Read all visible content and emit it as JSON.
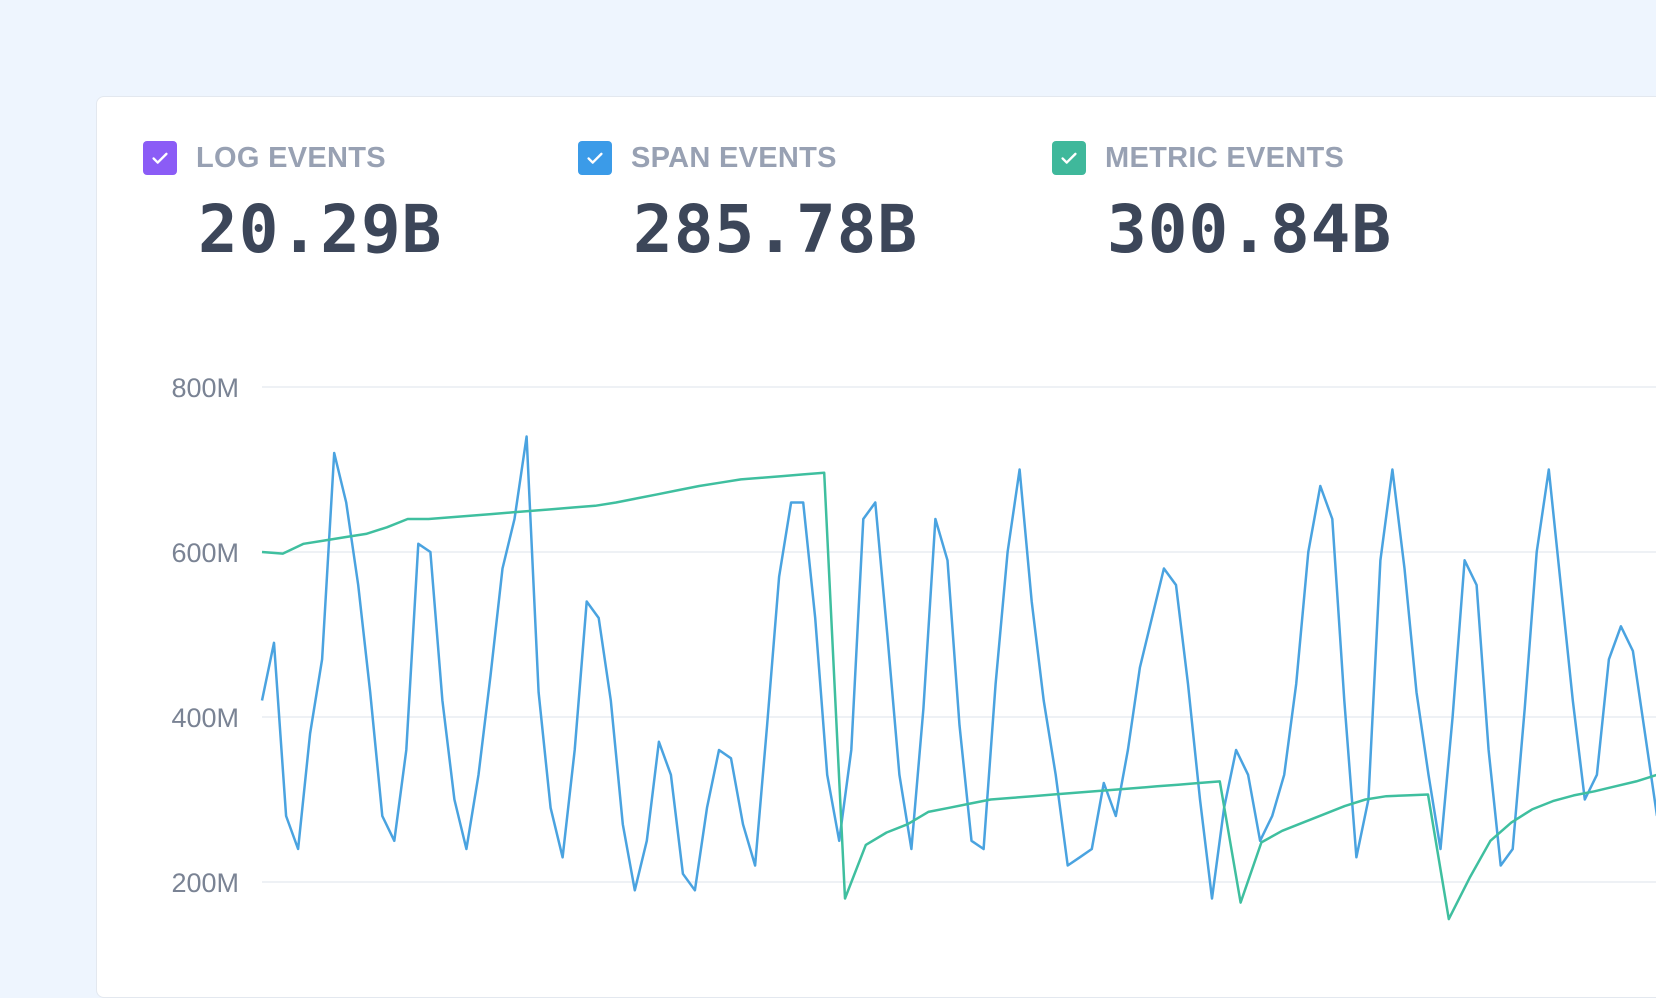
{
  "stats": [
    {
      "label": "LOG EVENTS",
      "value": "20.29B",
      "color": "#8b5cf6",
      "checked": true
    },
    {
      "label": "SPAN EVENTS",
      "value": "285.78B",
      "color": "#3b9be8",
      "checked": true
    },
    {
      "label": "METRIC EVENTS",
      "value": "300.84B",
      "color": "#3fb89b",
      "checked": true
    }
  ],
  "chart_data": {
    "type": "line",
    "ylim": [
      0,
      800000000
    ],
    "yticks": [
      {
        "value": 800000000,
        "label": "800M"
      },
      {
        "value": 600000000,
        "label": "600M"
      },
      {
        "value": 400000000,
        "label": "400M"
      },
      {
        "value": 200000000,
        "label": "200M"
      }
    ],
    "grid": true,
    "series": [
      {
        "color": "#4aa3e0",
        "values": [
          420,
          490,
          280,
          240,
          380,
          470,
          720,
          660,
          560,
          430,
          280,
          250,
          360,
          610,
          600,
          420,
          300,
          240,
          330,
          450,
          580,
          640,
          740,
          430,
          290,
          230,
          360,
          540,
          520,
          420,
          270,
          190,
          250,
          370,
          330,
          210,
          190,
          290,
          360,
          350,
          270,
          220,
          390,
          570,
          660,
          660,
          520,
          330,
          250,
          360,
          640,
          660,
          500,
          330,
          240,
          410,
          640,
          590,
          390,
          250,
          240,
          440,
          600,
          700,
          540,
          420,
          330,
          220,
          230,
          240,
          320,
          280,
          360,
          460,
          520,
          580,
          560,
          440,
          300,
          180,
          290,
          360,
          330,
          250,
          280,
          330,
          440,
          600,
          680,
          640,
          420,
          230,
          300,
          590,
          700,
          580,
          430,
          330,
          240,
          400,
          590,
          560,
          360,
          220,
          240,
          410,
          600,
          700,
          560,
          420,
          300,
          330,
          470,
          510,
          480,
          380,
          280
        ]
      },
      {
        "color": "#3fbf9f",
        "values": [
          600,
          598,
          610,
          614,
          618,
          622,
          630,
          640,
          640,
          642,
          644,
          646,
          648,
          650,
          652,
          654,
          656,
          660,
          665,
          670,
          675,
          680,
          684,
          688,
          690,
          692,
          694,
          696,
          180,
          245,
          260,
          270,
          285,
          290,
          295,
          300,
          302,
          304,
          306,
          308,
          310,
          312,
          314,
          316,
          318,
          320,
          322,
          175,
          248,
          262,
          272,
          282,
          292,
          300,
          304,
          305,
          306,
          155,
          205,
          250,
          272,
          288,
          298,
          305,
          310,
          316,
          322,
          330
        ]
      }
    ]
  }
}
